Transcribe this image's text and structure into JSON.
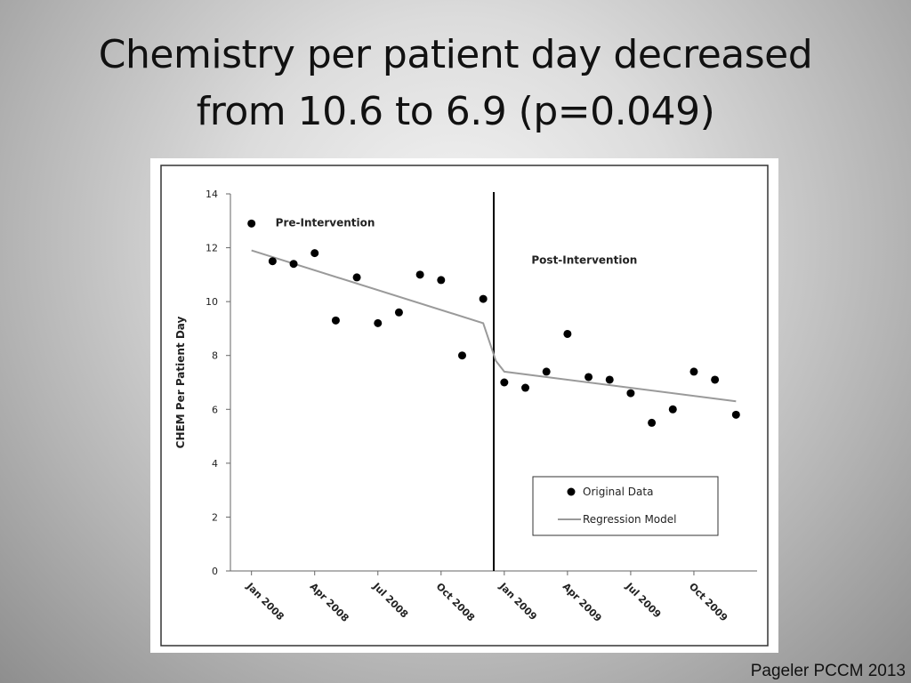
{
  "slide": {
    "title_line1": "Chemistry per patient day decreased",
    "title_line2": "from 10.6 to 6.9 (p=0.049)",
    "citation": "Pageler PCCM 2013"
  },
  "chart_data": {
    "type": "scatter",
    "ylabel": "CHEM Per Patient Day",
    "ylim": [
      0,
      14
    ],
    "yticks": [
      0,
      2,
      4,
      6,
      8,
      10,
      12,
      14
    ],
    "xlim": [
      0,
      24
    ],
    "xtick_positions": [
      0,
      3,
      6,
      9,
      12,
      15,
      18,
      21
    ],
    "xtick_labels": [
      "Jan 2008",
      "Apr 2008",
      "Jul 2008",
      "Oct 2008",
      "Jan 2009",
      "Apr 2009",
      "Jul 2009",
      "Oct 2009"
    ],
    "intervention_x": 11.5,
    "annotations": [
      {
        "name": "pre-intervention-label",
        "text": "Pre-Intervention",
        "x": 3.5,
        "y": 12.8
      },
      {
        "name": "post-intervention-label",
        "text": "Post-Intervention",
        "x": 15.8,
        "y": 11.4
      }
    ],
    "series": [
      {
        "name": "Original Data",
        "kind": "scatter",
        "x": [
          0,
          1,
          2,
          3,
          4,
          5,
          6,
          7,
          8,
          9,
          10,
          11,
          12,
          13,
          14,
          15,
          16,
          17,
          18,
          19,
          20,
          21,
          22,
          23
        ],
        "y": [
          12.9,
          11.5,
          11.4,
          11.8,
          9.3,
          10.9,
          9.2,
          9.6,
          11.0,
          10.8,
          8.0,
          10.1,
          7.0,
          6.8,
          7.4,
          8.8,
          7.2,
          7.1,
          6.6,
          5.5,
          6.0,
          7.4,
          7.1,
          5.8
        ]
      },
      {
        "name": "Regression Model",
        "kind": "line",
        "x": [
          0,
          11,
          11.6,
          12,
          23
        ],
        "y": [
          11.9,
          9.2,
          7.8,
          7.4,
          6.3
        ]
      }
    ],
    "grid": false,
    "legend": "bottom-right",
    "colors": {
      "points": "#000000",
      "regression": "#9a9a9a",
      "intervention": "#000000"
    }
  }
}
